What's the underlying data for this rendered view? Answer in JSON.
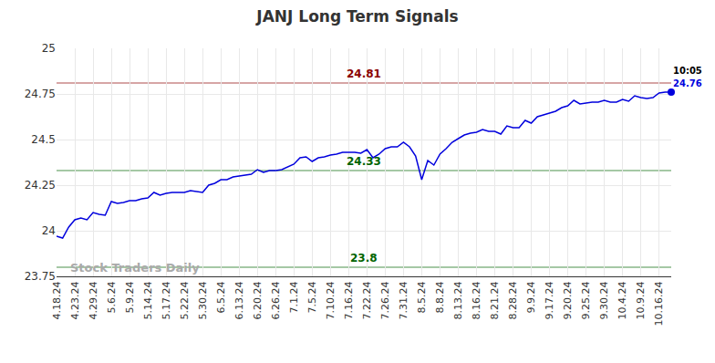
{
  "chart_data": {
    "type": "line",
    "title": "JANJ Long Term Signals",
    "watermark": "Stock Traders Daily",
    "categories": [
      "4.18.24",
      null,
      null,
      "4.23.24",
      null,
      null,
      "4.29.24",
      null,
      null,
      "5.6.24",
      null,
      null,
      "5.9.24",
      null,
      null,
      "5.14.24",
      null,
      null,
      "5.17.24",
      null,
      null,
      "5.22.24",
      null,
      null,
      "5.30.24",
      null,
      null,
      "6.5.24",
      null,
      null,
      "6.13.24",
      null,
      null,
      "6.20.24",
      null,
      null,
      "6.26.24",
      null,
      null,
      "7.1.24",
      null,
      null,
      "7.5.24",
      null,
      null,
      "7.10.24",
      null,
      null,
      "7.16.24",
      null,
      null,
      "7.22.24",
      null,
      null,
      "7.26.24",
      null,
      null,
      "7.31.24",
      null,
      null,
      "8.5.24",
      null,
      null,
      "8.8.24",
      null,
      null,
      "8.13.24",
      null,
      null,
      "8.16.24",
      null,
      null,
      "8.21.24",
      null,
      null,
      "8.28.24",
      null,
      null,
      "9.9.24",
      null,
      null,
      "9.17.24",
      null,
      null,
      "9.20.24",
      null,
      null,
      "9.25.24",
      null,
      null,
      "9.30.24",
      null,
      null,
      "10.4.24",
      null,
      null,
      "10.9.24",
      null,
      null,
      "10.16.24",
      null,
      null
    ],
    "values": [
      23.97,
      23.96,
      24.02,
      24.06,
      24.07,
      24.06,
      24.1,
      24.09,
      24.085,
      24.16,
      24.15,
      24.155,
      24.165,
      24.165,
      24.175,
      24.18,
      24.21,
      24.195,
      24.205,
      24.21,
      24.21,
      24.21,
      24.22,
      24.215,
      24.21,
      24.25,
      24.26,
      24.28,
      24.28,
      24.295,
      24.3,
      24.305,
      24.31,
      24.335,
      24.32,
      24.33,
      24.33,
      24.335,
      24.35,
      24.365,
      24.4,
      24.405,
      24.38,
      24.4,
      24.405,
      24.415,
      24.42,
      24.43,
      24.43,
      24.43,
      24.425,
      24.445,
      24.4,
      24.42,
      24.45,
      24.46,
      24.46,
      24.485,
      24.46,
      24.41,
      24.28,
      24.385,
      24.36,
      24.42,
      24.45,
      24.485,
      24.505,
      24.525,
      24.535,
      24.54,
      24.555,
      24.545,
      24.545,
      24.53,
      24.575,
      24.565,
      24.565,
      24.605,
      24.59,
      24.625,
      24.635,
      24.645,
      24.655,
      24.675,
      24.685,
      24.715,
      24.695,
      24.7,
      24.705,
      24.705,
      24.715,
      24.705,
      24.705,
      24.72,
      24.71,
      24.74,
      24.73,
      24.725,
      24.73,
      24.755,
      24.76,
      24.76
    ],
    "color": "#0000dd",
    "ylim": [
      23.75,
      25
    ],
    "yticks": [
      23.75,
      24,
      24.25,
      24.5,
      24.75,
      25
    ],
    "grid": true,
    "levels": [
      {
        "value": 24.81,
        "label": "24.81",
        "color": "#8b0000"
      },
      {
        "value": 24.33,
        "label": "24.33",
        "color": "#006400"
      },
      {
        "value": 23.8,
        "label": "23.8",
        "color": "#006400"
      }
    ],
    "last_label": {
      "time": "10:05",
      "value": 24.76
    }
  }
}
